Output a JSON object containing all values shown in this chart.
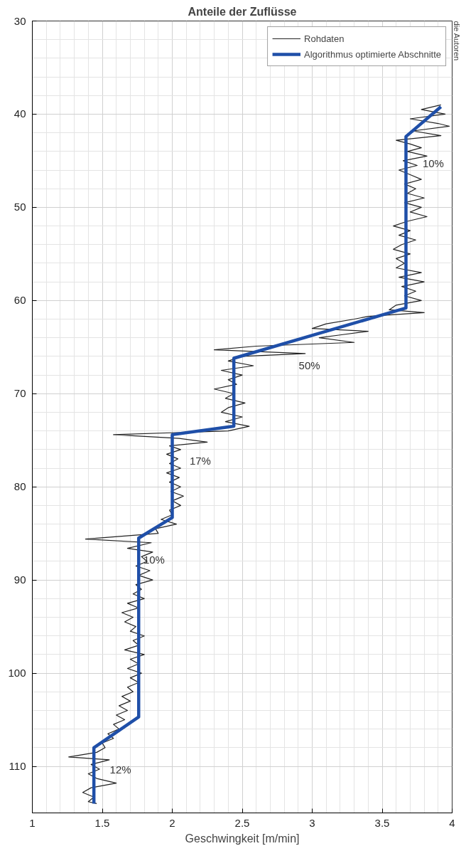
{
  "chart_data": {
    "type": "line",
    "title": "Anteile der Zuflüsse",
    "xlabel": "Geschwingkeit [m/min]",
    "xlim": [
      1,
      4
    ],
    "xticks": [
      1,
      1.5,
      2,
      2.5,
      3,
      3.5,
      4
    ],
    "ylim": [
      115,
      30
    ],
    "yticks": [
      30,
      40,
      50,
      60,
      70,
      80,
      90,
      100,
      110
    ],
    "grid": true,
    "legend": "top right",
    "line_style": "solid",
    "marker": "none",
    "series": [
      {
        "name": "Rohdaten",
        "color": "#222222",
        "x": [
          3.92,
          3.78,
          3.95,
          3.7,
          3.9,
          3.98,
          3.72,
          3.92,
          3.6,
          3.7,
          3.78,
          3.68,
          3.82,
          3.65,
          3.75,
          3.62,
          3.7,
          3.78,
          3.66,
          3.74,
          3.68,
          3.8,
          3.66,
          3.78,
          3.7,
          3.82,
          3.68,
          3.58,
          3.7,
          3.62,
          3.74,
          3.64,
          3.58,
          3.7,
          3.6,
          3.66,
          3.6,
          3.78,
          3.62,
          3.8,
          3.64,
          3.74,
          3.66,
          3.78,
          3.6,
          3.55,
          3.8,
          3.4,
          3.3,
          3.1,
          3.0,
          3.4,
          3.2,
          3.05,
          3.3,
          2.6,
          2.3,
          2.95,
          2.5,
          2.4,
          2.58,
          2.35,
          2.5,
          2.4,
          2.46,
          2.3,
          2.44,
          2.38,
          2.52,
          2.4,
          2.35,
          2.5,
          2.38,
          2.55,
          2.4,
          1.58,
          2.05,
          2.25,
          1.98,
          2.06,
          1.96,
          2.04,
          1.98,
          2.06,
          1.96,
          2.05,
          1.98,
          2.06,
          1.99,
          2.08,
          2.0,
          2.06,
          1.98,
          2.0,
          1.92,
          2.03,
          1.88,
          1.9,
          1.38,
          1.85,
          1.68,
          1.86,
          1.78,
          1.82,
          1.74,
          1.84,
          1.76,
          1.86,
          1.74,
          1.78,
          1.72,
          1.8,
          1.68,
          1.76,
          1.64,
          1.72,
          1.66,
          1.74,
          1.7,
          1.8,
          1.72,
          1.76,
          1.66,
          1.8,
          1.7,
          1.76,
          1.68,
          1.78,
          1.7,
          1.76,
          1.68,
          1.72,
          1.64,
          1.7,
          1.62,
          1.68,
          1.6,
          1.66,
          1.58,
          1.62,
          1.54,
          1.58,
          1.5,
          1.52,
          1.46,
          1.26,
          1.55,
          1.42,
          1.48,
          1.4,
          1.46,
          1.6,
          1.42,
          1.36,
          1.44,
          1.4,
          1.46
        ],
        "values": [
          39.0,
          39.5,
          40.0,
          40.5,
          41.0,
          41.3,
          41.8,
          42.3,
          42.8,
          43.2,
          43.6,
          44.0,
          44.5,
          45.0,
          45.5,
          46.0,
          46.5,
          47.0,
          47.5,
          48.0,
          48.5,
          49.0,
          49.5,
          50.0,
          50.5,
          51.0,
          51.5,
          52.0,
          52.5,
          53.0,
          53.5,
          54.0,
          54.5,
          55.0,
          55.5,
          56.0,
          56.5,
          57.0,
          57.5,
          58.0,
          58.5,
          59.0,
          59.5,
          60.0,
          60.5,
          61.0,
          61.3,
          61.7,
          62.0,
          62.5,
          63.0,
          63.3,
          63.7,
          64.0,
          64.5,
          64.9,
          65.3,
          65.7,
          66.0,
          66.5,
          67.0,
          67.5,
          68.0,
          68.5,
          69.0,
          69.5,
          70.0,
          70.5,
          71.0,
          71.5,
          72.0,
          72.5,
          73.0,
          73.5,
          74.0,
          74.4,
          74.8,
          75.2,
          75.6,
          76.0,
          76.5,
          77.0,
          77.5,
          78.0,
          78.5,
          79.0,
          79.5,
          80.0,
          80.5,
          81.0,
          81.5,
          82.0,
          82.5,
          83.0,
          83.5,
          84.0,
          84.5,
          85.0,
          85.6,
          86.0,
          86.6,
          87.0,
          87.5,
          88.0,
          88.5,
          89.0,
          89.5,
          90.0,
          90.5,
          91.0,
          91.5,
          92.0,
          92.5,
          93.0,
          93.5,
          94.0,
          94.5,
          95.0,
          95.5,
          96.0,
          96.5,
          97.0,
          97.5,
          98.0,
          98.5,
          99.0,
          99.5,
          100.0,
          100.5,
          101.0,
          101.5,
          102.0,
          102.5,
          103.0,
          103.5,
          104.0,
          104.5,
          105.0,
          105.5,
          106.0,
          106.5,
          107.0,
          107.5,
          108.0,
          108.5,
          109.0,
          109.3,
          109.8,
          110.3,
          110.8,
          111.3,
          111.8,
          112.3,
          112.8,
          113.3,
          113.8,
          114.0
        ]
      },
      {
        "name": "Algorithmus optimierte Abschnitte",
        "color": "#1f4fa8",
        "x": [
          3.92,
          3.67,
          3.67,
          2.44,
          2.44,
          2.0,
          2.0,
          1.76,
          1.76,
          1.44,
          1.44
        ],
        "values": [
          39.2,
          42.4,
          60.8,
          66.2,
          73.5,
          74.4,
          83.3,
          85.5,
          104.7,
          108.0,
          114.0
        ]
      }
    ],
    "annotations": [
      "10%",
      "50%",
      "17%",
      "10%",
      "12%",
      "die Autoren"
    ]
  }
}
